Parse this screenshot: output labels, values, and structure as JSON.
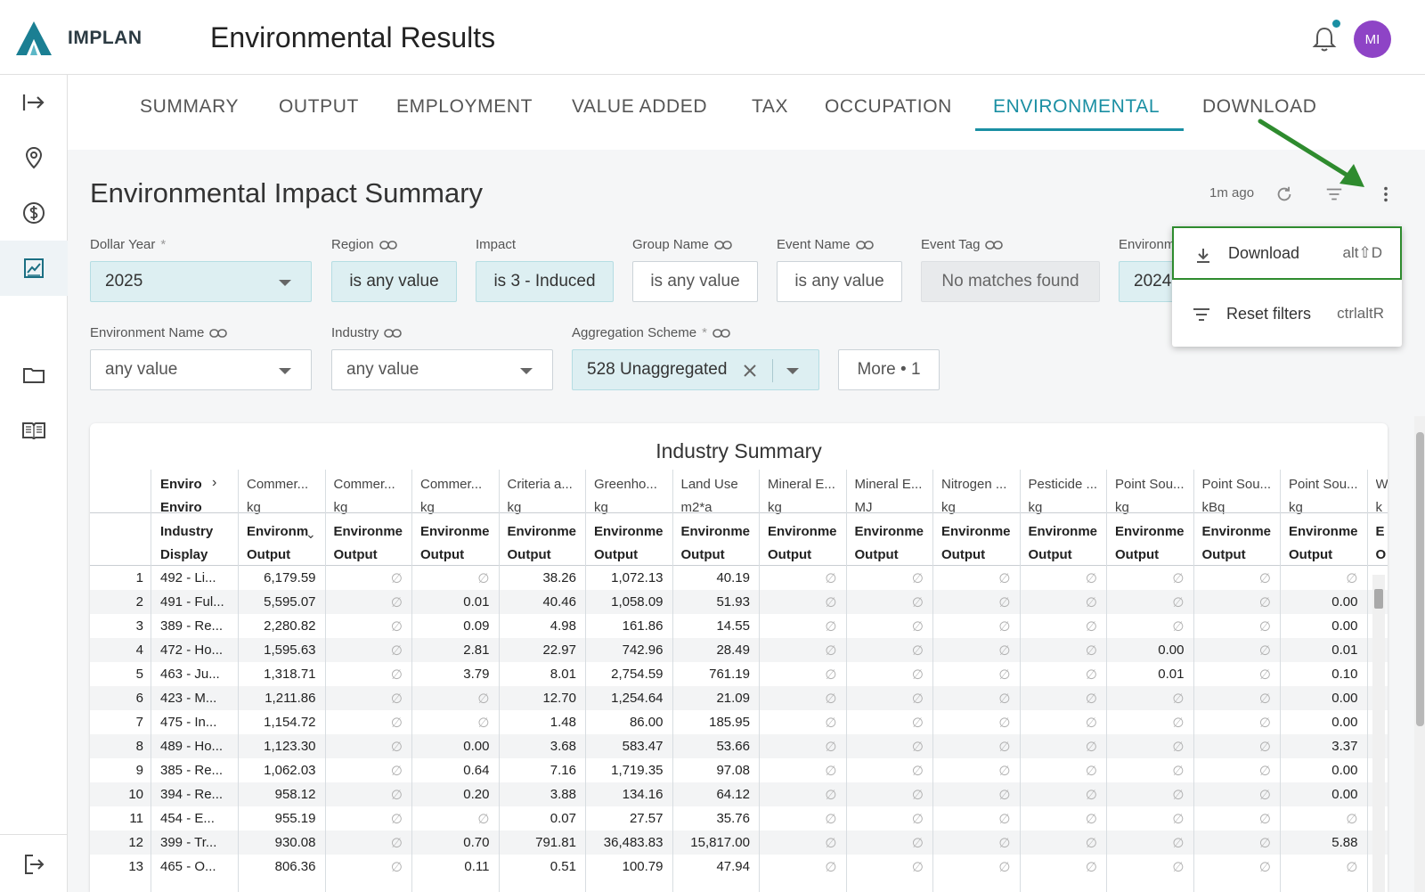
{
  "header": {
    "brand": "IMPLAN",
    "title": "Environmental Results",
    "avatar_initials": "MI",
    "accent": "#1a8fa3",
    "avatar_color": "#8e44c6"
  },
  "sidebar": {
    "items": [
      {
        "icon": "expand-arrow-icon"
      },
      {
        "icon": "location-pin-icon"
      },
      {
        "icon": "dollar-icon"
      },
      {
        "icon": "chart-icon"
      },
      {
        "icon": "folder-icon"
      },
      {
        "icon": "book-icon"
      },
      {
        "icon": "logout-icon"
      }
    ]
  },
  "tabs": [
    {
      "label": "SUMMARY"
    },
    {
      "label": "OUTPUT"
    },
    {
      "label": "EMPLOYMENT"
    },
    {
      "label": "VALUE ADDED"
    },
    {
      "label": "TAX"
    },
    {
      "label": "OCCUPATION"
    },
    {
      "label": "ENVIRONMENTAL"
    },
    {
      "label": "DOWNLOAD"
    }
  ],
  "active_tab": "ENVIRONMENTAL",
  "page": {
    "title": "Environmental Impact Summary",
    "refresh_time": "1m ago"
  },
  "filters": {
    "dollar_year": {
      "label": "Dollar Year",
      "required": "*",
      "value": "2025"
    },
    "region": {
      "label": "Region",
      "value": "is any value"
    },
    "impact": {
      "label": "Impact",
      "value": "is 3 - Induced"
    },
    "group_name": {
      "label": "Group Name",
      "value": "is any value"
    },
    "event_name": {
      "label": "Event Name",
      "value": "is any value"
    },
    "event_tag": {
      "label": "Event Tag",
      "value": "No matches found"
    },
    "environment_year": {
      "label": "Environm",
      "value": "2024"
    },
    "environment_name": {
      "label": "Environment Name",
      "value": "any value"
    },
    "industry": {
      "label": "Industry",
      "value": "any value"
    },
    "aggregation_scheme": {
      "label": "Aggregation Scheme",
      "required": "*",
      "value": "528 Unaggregated"
    },
    "more": "More • 1"
  },
  "menu": {
    "download": {
      "label": "Download",
      "shortcut": "alt⇧D"
    },
    "reset": {
      "label": "Reset filters",
      "shortcut": "ctrlaltR"
    }
  },
  "table": {
    "title": "Industry Summary",
    "pivot_header_1": "Enviro",
    "pivot_header_2": "Enviro",
    "row_header_1": "Industry",
    "row_header_2": "Display",
    "columns": [
      {
        "name": "Commer...",
        "unit": "kg",
        "m1": "Environm",
        "m2": "Output"
      },
      {
        "name": "Commer...",
        "unit": "kg",
        "m1": "Environme",
        "m2": "Output"
      },
      {
        "name": "Commer...",
        "unit": "kg",
        "m1": "Environme",
        "m2": "Output"
      },
      {
        "name": "Criteria a...",
        "unit": "kg",
        "m1": "Environme",
        "m2": "Output"
      },
      {
        "name": "Greenho...",
        "unit": "kg",
        "m1": "Environme",
        "m2": "Output"
      },
      {
        "name": "Land Use",
        "unit": "m2*a",
        "m1": "Environme",
        "m2": "Output"
      },
      {
        "name": "Mineral E...",
        "unit": "kg",
        "m1": "Environme",
        "m2": "Output"
      },
      {
        "name": "Mineral E...",
        "unit": "MJ",
        "m1": "Environme",
        "m2": "Output"
      },
      {
        "name": "Nitrogen ...",
        "unit": "kg",
        "m1": "Environme",
        "m2": "Output"
      },
      {
        "name": "Pesticide ...",
        "unit": "kg",
        "m1": "Environme",
        "m2": "Output"
      },
      {
        "name": "Point Sou...",
        "unit": "kg",
        "m1": "Environme",
        "m2": "Output"
      },
      {
        "name": "Point Sou...",
        "unit": "kBq",
        "m1": "Environme",
        "m2": "Output"
      },
      {
        "name": "Point Sou...",
        "unit": "kg",
        "m1": "Environme",
        "m2": "Output"
      },
      {
        "name": "W",
        "unit": "k",
        "m1": "E",
        "m2": "O"
      }
    ],
    "null_symbol": "∅",
    "rows": [
      {
        "n": "1",
        "ind": "492 - Li...",
        "v": [
          "6,179.59",
          "∅",
          "∅",
          "38.26",
          "1,072.13",
          "40.19",
          "∅",
          "∅",
          "∅",
          "∅",
          "∅",
          "∅",
          "∅"
        ]
      },
      {
        "n": "2",
        "ind": "491 - Ful...",
        "v": [
          "5,595.07",
          "∅",
          "0.01",
          "40.46",
          "1,058.09",
          "51.93",
          "∅",
          "∅",
          "∅",
          "∅",
          "∅",
          "∅",
          "0.00"
        ]
      },
      {
        "n": "3",
        "ind": "389 - Re...",
        "v": [
          "2,280.82",
          "∅",
          "0.09",
          "4.98",
          "161.86",
          "14.55",
          "∅",
          "∅",
          "∅",
          "∅",
          "∅",
          "∅",
          "0.00"
        ]
      },
      {
        "n": "4",
        "ind": "472 - Ho...",
        "v": [
          "1,595.63",
          "∅",
          "2.81",
          "22.97",
          "742.96",
          "28.49",
          "∅",
          "∅",
          "∅",
          "∅",
          "0.00",
          "∅",
          "0.01"
        ]
      },
      {
        "n": "5",
        "ind": "463 - Ju...",
        "v": [
          "1,318.71",
          "∅",
          "3.79",
          "8.01",
          "2,754.59",
          "761.19",
          "∅",
          "∅",
          "∅",
          "∅",
          "0.01",
          "∅",
          "0.10"
        ]
      },
      {
        "n": "6",
        "ind": "423 - M...",
        "v": [
          "1,211.86",
          "∅",
          "∅",
          "12.70",
          "1,254.64",
          "21.09",
          "∅",
          "∅",
          "∅",
          "∅",
          "∅",
          "∅",
          "0.00"
        ]
      },
      {
        "n": "7",
        "ind": "475 - In...",
        "v": [
          "1,154.72",
          "∅",
          "∅",
          "1.48",
          "86.00",
          "185.95",
          "∅",
          "∅",
          "∅",
          "∅",
          "∅",
          "∅",
          "0.00"
        ]
      },
      {
        "n": "8",
        "ind": "489 - Ho...",
        "v": [
          "1,123.30",
          "∅",
          "0.00",
          "3.68",
          "583.47",
          "53.66",
          "∅",
          "∅",
          "∅",
          "∅",
          "∅",
          "∅",
          "3.37"
        ]
      },
      {
        "n": "9",
        "ind": "385 - Re...",
        "v": [
          "1,062.03",
          "∅",
          "0.64",
          "7.16",
          "1,719.35",
          "97.08",
          "∅",
          "∅",
          "∅",
          "∅",
          "∅",
          "∅",
          "0.00"
        ]
      },
      {
        "n": "10",
        "ind": "394 - Re...",
        "v": [
          "958.12",
          "∅",
          "0.20",
          "3.88",
          "134.16",
          "64.12",
          "∅",
          "∅",
          "∅",
          "∅",
          "∅",
          "∅",
          "0.00"
        ]
      },
      {
        "n": "11",
        "ind": "454 - E...",
        "v": [
          "955.19",
          "∅",
          "∅",
          "0.07",
          "27.57",
          "35.76",
          "∅",
          "∅",
          "∅",
          "∅",
          "∅",
          "∅",
          "∅"
        ]
      },
      {
        "n": "12",
        "ind": "399 - Tr...",
        "v": [
          "930.08",
          "∅",
          "0.70",
          "791.81",
          "36,483.83",
          "15,817.00",
          "∅",
          "∅",
          "∅",
          "∅",
          "∅",
          "∅",
          "5.88"
        ]
      },
      {
        "n": "13",
        "ind": "465 - O...",
        "v": [
          "806.36",
          "∅",
          "0.11",
          "0.51",
          "100.79",
          "47.94",
          "∅",
          "∅",
          "∅",
          "∅",
          "∅",
          "∅",
          "∅"
        ]
      }
    ]
  }
}
